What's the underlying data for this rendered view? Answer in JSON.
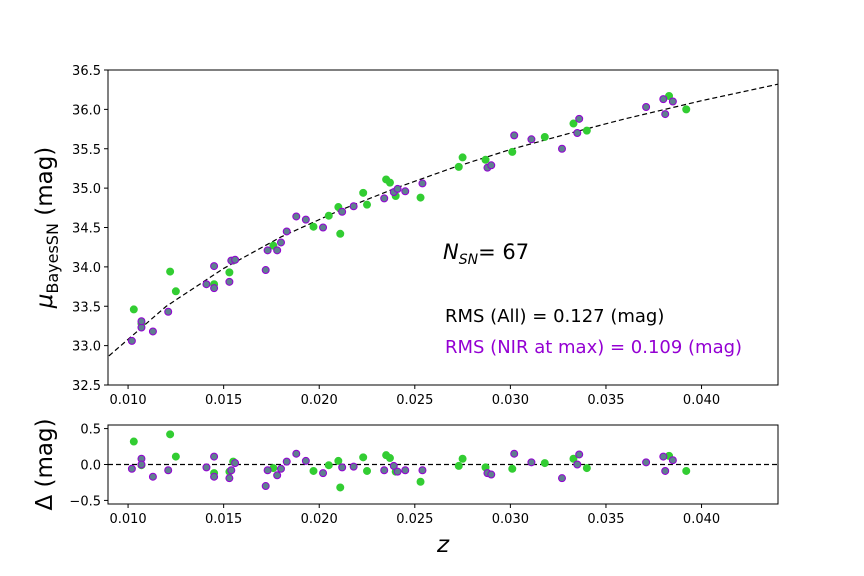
{
  "chart_data": [
    {
      "type": "scatter",
      "ylabel": {
        "symbol": "μ",
        "subscript": "BayesSN",
        "unit": " (mag)"
      },
      "xlim": [
        0.00895,
        0.044
      ],
      "ylim": [
        32.5,
        36.5
      ],
      "xticks": [
        {
          "value": 0.01,
          "label": "0.010"
        },
        {
          "value": 0.015,
          "label": "0.015"
        },
        {
          "value": 0.02,
          "label": "0.020"
        },
        {
          "value": 0.025,
          "label": "0.025"
        },
        {
          "value": 0.03,
          "label": "0.030"
        },
        {
          "value": 0.035,
          "label": "0.035"
        },
        {
          "value": 0.04,
          "label": "0.040"
        }
      ],
      "yticks": [
        32.5,
        {
          "value": 33,
          "label": "33.0"
        },
        33.5,
        {
          "value": 34,
          "label": "34.0"
        },
        34.5,
        {
          "value": 35,
          "label": "35.0"
        },
        35.5,
        {
          "value": 36,
          "label": "36.0"
        },
        36.5
      ],
      "model": {
        "color": "#000000",
        "x": [
          0.009,
          0.012,
          0.015,
          0.018,
          0.021,
          0.024,
          0.027,
          0.03,
          0.033,
          0.036,
          0.04,
          0.044
        ],
        "values": [
          32.87,
          33.5,
          33.98,
          34.38,
          34.71,
          35.0,
          35.26,
          35.49,
          35.69,
          35.88,
          36.11,
          36.32
        ]
      },
      "series": [
        {
          "color": "#32cd32",
          "edgecolor": "#32cd32",
          "x": [
            0.0103,
            0.0107,
            0.0122,
            0.0125,
            0.0145,
            0.0153,
            0.0155,
            0.0176,
            0.0197,
            0.0205,
            0.021,
            0.0211,
            0.0223,
            0.0225,
            0.0235,
            0.0237,
            0.024,
            0.0253,
            0.0273,
            0.0275,
            0.0287,
            0.0301,
            0.0318,
            0.0333,
            0.034,
            0.0383,
            0.0392
          ],
          "values": [
            33.46,
            33.28,
            33.94,
            33.69,
            33.78,
            33.93,
            34.08,
            34.27,
            34.51,
            34.65,
            34.76,
            34.42,
            34.94,
            34.79,
            35.11,
            35.07,
            34.9,
            34.88,
            35.27,
            35.39,
            35.36,
            35.46,
            35.65,
            35.82,
            35.73,
            36.17,
            36.0
          ]
        },
        {
          "color": "#5f7f8f",
          "edgecolor": "#9400d3",
          "x": [
            0.0102,
            0.0107,
            0.0107,
            0.0113,
            0.0121,
            0.0141,
            0.0145,
            0.0145,
            0.0153,
            0.0154,
            0.0156,
            0.0172,
            0.0173,
            0.0178,
            0.018,
            0.0183,
            0.0188,
            0.0193,
            0.0202,
            0.0212,
            0.0218,
            0.0234,
            0.0239,
            0.0241,
            0.0245,
            0.0254,
            0.0288,
            0.029,
            0.0302,
            0.0311,
            0.0327,
            0.0335,
            0.0336,
            0.0371,
            0.038,
            0.0381,
            0.0385
          ],
          "values": [
            33.06,
            33.23,
            33.31,
            33.18,
            33.43,
            33.78,
            33.73,
            34.01,
            33.81,
            34.08,
            34.09,
            33.96,
            34.21,
            34.21,
            34.31,
            34.45,
            34.64,
            34.6,
            34.5,
            34.7,
            34.77,
            34.87,
            34.95,
            34.99,
            34.96,
            35.06,
            35.26,
            35.29,
            35.67,
            35.62,
            35.5,
            35.7,
            35.88,
            36.03,
            36.13,
            35.94,
            36.1
          ]
        }
      ],
      "annotations": [
        {
          "symbol": "N",
          "subscript": "SN",
          "text": "= 67",
          "color": "#000000"
        },
        {
          "text": "RMS (All) = 0.127 (mag)",
          "color": "#000000"
        },
        {
          "text": "RMS (NIR at max) = 0.109 (mag)",
          "color": "#9400d3"
        }
      ]
    },
    {
      "type": "scatter",
      "ylabel": "Δ (mag)",
      "xlabel": "z",
      "xlim": [
        0.00895,
        0.044
      ],
      "ylim": [
        -0.55,
        0.55
      ],
      "xticks": [
        {
          "value": 0.01,
          "label": "0.010"
        },
        {
          "value": 0.015,
          "label": "0.015"
        },
        {
          "value": 0.02,
          "label": "0.020"
        },
        {
          "value": 0.025,
          "label": "0.025"
        },
        {
          "value": 0.03,
          "label": "0.030"
        },
        {
          "value": 0.035,
          "label": "0.035"
        },
        {
          "value": 0.04,
          "label": "0.040"
        }
      ],
      "yticks": [
        {
          "value": -0.5,
          "label": "−0.5"
        },
        {
          "value": 0,
          "label": "0.0"
        },
        0.5
      ],
      "reference_line": 0,
      "series": [
        {
          "color": "#32cd32",
          "edgecolor": "#32cd32",
          "x": [
            0.0103,
            0.0107,
            0.0122,
            0.0125,
            0.0145,
            0.0153,
            0.0155,
            0.0176,
            0.0197,
            0.0205,
            0.021,
            0.0211,
            0.0223,
            0.0225,
            0.0235,
            0.0237,
            0.024,
            0.0253,
            0.0273,
            0.0275,
            0.0287,
            0.0301,
            0.0318,
            0.0333,
            0.034,
            0.0383,
            0.0392
          ],
          "values": [
            0.32,
            -0.01,
            0.42,
            0.11,
            -0.12,
            -0.1,
            0.04,
            -0.05,
            -0.09,
            -0.01,
            0.05,
            -0.32,
            0.1,
            -0.09,
            0.13,
            0.09,
            -0.1,
            -0.24,
            -0.02,
            0.08,
            -0.04,
            -0.06,
            0.02,
            0.08,
            -0.05,
            0.12,
            -0.09
          ]
        },
        {
          "color": "#5f7f8f",
          "edgecolor": "#9400d3",
          "x": [
            0.0102,
            0.0107,
            0.0107,
            0.0113,
            0.0121,
            0.0141,
            0.0145,
            0.0145,
            0.0153,
            0.0154,
            0.0156,
            0.0172,
            0.0173,
            0.0178,
            0.018,
            0.0183,
            0.0188,
            0.0193,
            0.0202,
            0.0212,
            0.0218,
            0.0234,
            0.0239,
            0.0241,
            0.0245,
            0.0254,
            0.0288,
            0.029,
            0.0302,
            0.0311,
            0.0327,
            0.0335,
            0.0336,
            0.0371,
            0.038,
            0.0381,
            0.0385
          ],
          "values": [
            -0.06,
            0.08,
            0.0,
            -0.17,
            -0.08,
            -0.04,
            -0.17,
            0.11,
            -0.19,
            -0.08,
            0.02,
            -0.3,
            -0.08,
            -0.15,
            -0.06,
            0.04,
            0.15,
            0.05,
            -0.12,
            -0.04,
            -0.03,
            -0.08,
            -0.02,
            -0.1,
            -0.08,
            -0.08,
            -0.12,
            -0.14,
            0.15,
            0.03,
            -0.19,
            0.0,
            0.14,
            0.03,
            0.11,
            -0.09,
            0.06
          ]
        }
      ]
    }
  ]
}
